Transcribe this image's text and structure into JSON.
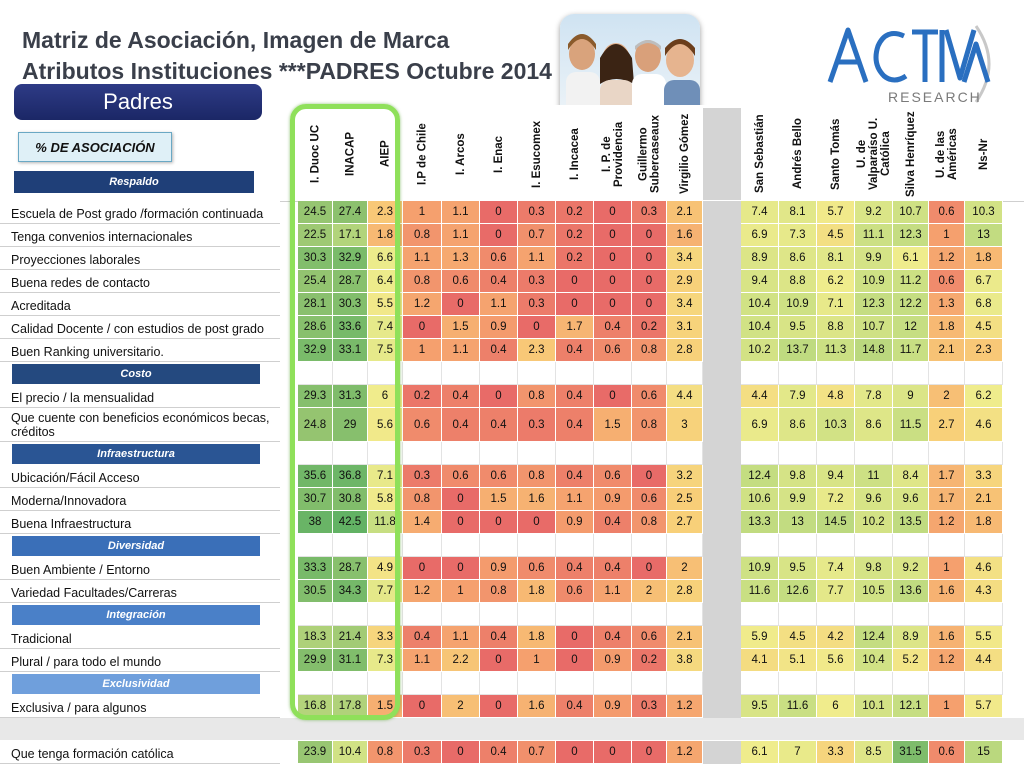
{
  "title_line1": "Matriz de Asociación, Imagen de Marca",
  "title_line2": "Atributos Instituciones ***PADRES Octubre 2014",
  "padres_label": "Padres",
  "association_label": "% DE ASOCIACIÓN",
  "logo": {
    "brand": "ACTIVA",
    "sub": "RESEARCH"
  },
  "columns": [
    "I. Duoc UC",
    "INACAP",
    "AIEP",
    "I.P de Chile",
    "I. Arcos",
    "I. Enac",
    "I. Esucomex",
    "I. Incacea",
    "I. P. de Providencia",
    "Guillermo Subercaseaux",
    "Virgilio Gómez",
    "",
    "San Sebastián",
    "Andrés Bello",
    "Santo Tomás",
    "U. de Valparaíso U. Católica",
    "Silva Henríquez",
    "U. de las Américas",
    "Ns-Nr"
  ],
  "sections": [
    {
      "name": "Respaldo",
      "color": "#1f3f78",
      "rows": [
        {
          "label": "Escuela de Post grado /formación continuada",
          "values": [
            "24.5",
            "27.4",
            "2.3",
            "1",
            "1.1",
            "0",
            "0.3",
            "0.2",
            "0",
            "0.3",
            "2.1",
            "",
            "7.4",
            "8.1",
            "5.7",
            "9.2",
            "10.7",
            "0.6",
            "10.3"
          ]
        },
        {
          "label": "Tenga convenios internacionales",
          "values": [
            "22.5",
            "17.1",
            "1.8",
            "0.8",
            "1.1",
            "0",
            "0.7",
            "0.2",
            "0",
            "0",
            "1.6",
            "",
            "6.9",
            "7.3",
            "4.5",
            "11.1",
            "12.3",
            "1",
            "13"
          ]
        },
        {
          "label": "Proyecciones laborales",
          "values": [
            "30.3",
            "32.9",
            "6.6",
            "1.1",
            "1.3",
            "0.6",
            "1.1",
            "0.2",
            "0",
            "0",
            "3.4",
            "",
            "8.9",
            "8.6",
            "8.1",
            "9.9",
            "6.1",
            "1.2",
            "1.8"
          ]
        },
        {
          "label": "Buena redes de contacto",
          "values": [
            "25.4",
            "28.7",
            "6.4",
            "0.8",
            "0.6",
            "0.4",
            "0.3",
            "0",
            "0",
            "0",
            "2.9",
            "",
            "9.4",
            "8.8",
            "6.2",
            "10.9",
            "11.2",
            "0.6",
            "6.7"
          ]
        },
        {
          "label": "Acreditada",
          "values": [
            "28.1",
            "30.3",
            "5.5",
            "1.2",
            "0",
            "1.1",
            "0.3",
            "0",
            "0",
            "0",
            "3.4",
            "",
            "10.4",
            "10.9",
            "7.1",
            "12.3",
            "12.2",
            "1.3",
            "6.8"
          ]
        },
        {
          "label": "Calidad Docente / con estudios de post grado",
          "values": [
            "28.6",
            "33.6",
            "7.4",
            "0",
            "1.5",
            "0.9",
            "0",
            "1.7",
            "0.4",
            "0.2",
            "3.1",
            "",
            "10.4",
            "9.5",
            "8.8",
            "10.7",
            "12",
            "1.8",
            "4.5"
          ]
        },
        {
          "label": "Buen Ranking universitario.",
          "values": [
            "32.9",
            "33.1",
            "7.5",
            "1",
            "1.1",
            "0.4",
            "2.3",
            "0.4",
            "0.6",
            "0.8",
            "2.8",
            "",
            "10.2",
            "13.7",
            "11.3",
            "14.8",
            "11.7",
            "2.1",
            "2.3"
          ]
        }
      ]
    },
    {
      "name": "Costo",
      "color": "#24497f",
      "rows": [
        {
          "label": "El precio / la mensualidad",
          "values": [
            "29.3",
            "31.3",
            "6",
            "0.2",
            "0.4",
            "0",
            "0.8",
            "0.4",
            "0",
            "0.6",
            "4.4",
            "",
            "4.4",
            "7.9",
            "4.8",
            "7.8",
            "9",
            "2",
            "6.2"
          ]
        },
        {
          "label": "Que cuente con beneficios económicos becas, créditos",
          "values": [
            "24.8",
            "29",
            "5.6",
            "0.6",
            "0.4",
            "0.4",
            "0.3",
            "0.4",
            "1.5",
            "0.8",
            "3",
            "",
            "6.9",
            "8.6",
            "10.3",
            "8.6",
            "11.5",
            "2.7",
            "4.6"
          ]
        }
      ]
    },
    {
      "name": "Infraestructura",
      "color": "#2a5594",
      "rows": [
        {
          "label": "Ubicación/Fácil Acceso",
          "values": [
            "35.6",
            "36.8",
            "7.1",
            "0.3",
            "0.6",
            "0.6",
            "0.8",
            "0.4",
            "0.6",
            "0",
            "3.2",
            "",
            "12.4",
            "9.8",
            "9.4",
            "11",
            "8.4",
            "1.7",
            "3.3"
          ]
        },
        {
          "label": "Moderna/Innovadora",
          "values": [
            "30.7",
            "30.8",
            "5.8",
            "0.8",
            "0",
            "1.5",
            "1.6",
            "1.1",
            "0.9",
            "0.6",
            "2.5",
            "",
            "10.6",
            "9.9",
            "7.2",
            "9.6",
            "9.6",
            "1.7",
            "2.1"
          ]
        },
        {
          "label": "Buena Infraestructura",
          "values": [
            "38",
            "42.5",
            "11.8",
            "1.4",
            "0",
            "0",
            "0",
            "0.9",
            "0.4",
            "0.8",
            "2.7",
            "",
            "13.3",
            "13",
            "14.5",
            "10.2",
            "13.5",
            "1.2",
            "1.8"
          ]
        }
      ]
    },
    {
      "name": "Diversidad",
      "color": "#3a6fb8",
      "rows": [
        {
          "label": "Buen Ambiente / Entorno",
          "values": [
            "33.3",
            "28.7",
            "4.9",
            "0",
            "0",
            "0.9",
            "0.6",
            "0.4",
            "0.4",
            "0",
            "2",
            "",
            "10.9",
            "9.5",
            "7.4",
            "9.8",
            "9.2",
            "1",
            "4.6"
          ]
        },
        {
          "label": "Variedad Facultades/Carreras",
          "values": [
            "30.5",
            "34.3",
            "7.7",
            "1.2",
            "1",
            "0.8",
            "1.8",
            "0.6",
            "1.1",
            "2",
            "2.8",
            "",
            "11.6",
            "12.6",
            "7.7",
            "10.5",
            "13.6",
            "1.6",
            "4.3"
          ]
        }
      ]
    },
    {
      "name": "Integración",
      "color": "#4a80c8",
      "rows": [
        {
          "label": "Tradicional",
          "values": [
            "18.3",
            "21.4",
            "3.3",
            "0.4",
            "1.1",
            "0.4",
            "1.8",
            "0",
            "0.4",
            "0.6",
            "2.1",
            "",
            "5.9",
            "4.5",
            "4.2",
            "12.4",
            "8.9",
            "1.6",
            "5.5"
          ]
        },
        {
          "label": "Plural / para todo el mundo",
          "values": [
            "29.9",
            "31.1",
            "7.3",
            "1.1",
            "2.2",
            "0",
            "1",
            "0",
            "0.9",
            "0.2",
            "3.8",
            "",
            "4.1",
            "5.1",
            "5.6",
            "10.4",
            "5.2",
            "1.2",
            "4.4"
          ]
        }
      ]
    },
    {
      "name": "Exclusividad",
      "color": "#6f9fdc",
      "rows": [
        {
          "label": "Exclusiva / para algunos",
          "values": [
            "16.8",
            "17.8",
            "1.5",
            "0",
            "2",
            "0",
            "1.6",
            "0.4",
            "0.9",
            "0.3",
            "1.2",
            "",
            "9.5",
            "11.6",
            "6",
            "10.1",
            "12.1",
            "1",
            "5.7"
          ]
        }
      ]
    },
    {
      "name": "",
      "color": "#d8d8d8",
      "rows": [
        {
          "label": "Que tenga formación católica",
          "values": [
            "23.9",
            "10.4",
            "0.8",
            "0.3",
            "0",
            "0.4",
            "0.7",
            "0",
            "0",
            "0",
            "1.2",
            "",
            "6.1",
            "7",
            "3.3",
            "8.5",
            "31.5",
            "0.6",
            "15"
          ]
        }
      ]
    }
  ]
}
